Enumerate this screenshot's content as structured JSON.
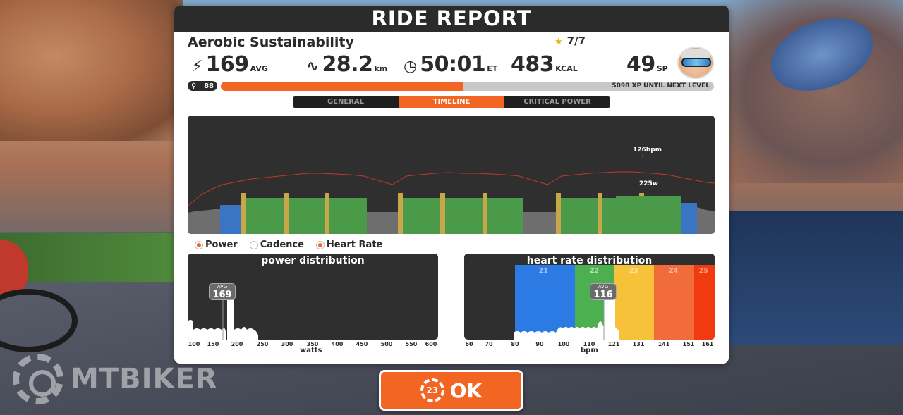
{
  "header": {
    "title": "RIDE REPORT"
  },
  "workout": {
    "name": "Aerobic Sustainability",
    "stars": "7/7"
  },
  "stats": {
    "power": {
      "icon": "lightning-icon",
      "value": "169",
      "unit": "AVG"
    },
    "distance": {
      "icon": "route-icon",
      "value": "28.2",
      "unit": "km"
    },
    "time": {
      "icon": "clock-icon",
      "value": "50:01",
      "unit": "ET"
    },
    "calories": {
      "value": "483",
      "unit": "KCAL"
    },
    "sport_points": {
      "value": "49",
      "unit": "SP"
    }
  },
  "level": {
    "value": "88",
    "xp_text": "5098 XP UNTIL NEXT LEVEL",
    "progress": 0.49
  },
  "tabs": [
    {
      "label": "GENERAL",
      "active": false
    },
    {
      "label": "TIMELINE",
      "active": true
    },
    {
      "label": "CRITICAL POWER",
      "active": false
    }
  ],
  "timeline": {
    "hr_label": "126bpm",
    "power_label": "225w",
    "colors": {
      "endurance": "#4a9a4a",
      "recovery": "#3a75c4",
      "threshold": "#c8a64a",
      "rest": "#6e6e6e",
      "hr_line": "#c0392b"
    }
  },
  "legend": [
    {
      "label": "Power",
      "color": "#f26522",
      "active": true
    },
    {
      "label": "Cadence",
      "color": "#ffffff",
      "active": false
    },
    {
      "label": "Heart Rate",
      "color": "#f26522",
      "active": true
    }
  ],
  "power_distribution": {
    "title": "power distribution",
    "avg_label": "AVG",
    "avg_value": "169",
    "ticks": [
      "100",
      "150",
      "200",
      "250",
      "300",
      "350",
      "400",
      "450",
      "500",
      "550",
      "600"
    ],
    "xlabel": "watts"
  },
  "hr_distribution": {
    "title": "heart rate distribution",
    "avg_label": "AVG",
    "avg_value": "116",
    "zones": [
      "Z1",
      "Z2",
      "Z3",
      "Z4",
      "Z5"
    ],
    "zone_colors": [
      "#2c7be5",
      "#4caf50",
      "#f7c23a",
      "#f26b3a",
      "#f23a10"
    ],
    "ticks": [
      "60",
      "70",
      "80",
      "90",
      "100",
      "110",
      "121",
      "131",
      "141",
      "151",
      "161"
    ],
    "xlabel": "bpm"
  },
  "ok_button": {
    "timer": "23",
    "label": "OK"
  },
  "watermark": {
    "text": "MTBIKER"
  }
}
